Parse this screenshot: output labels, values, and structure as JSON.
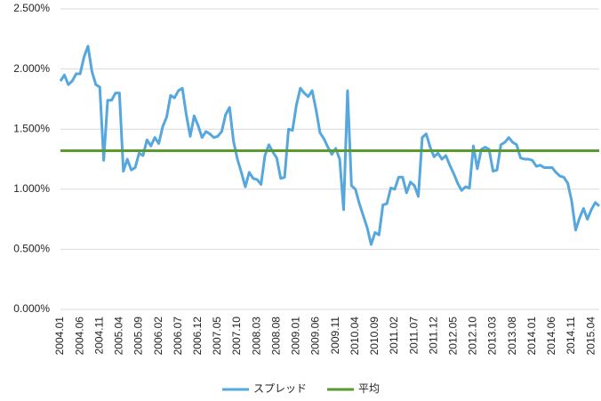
{
  "chart_data": {
    "type": "line",
    "categories": [
      "2004.01",
      null,
      null,
      null,
      null,
      "2004.06",
      null,
      null,
      null,
      null,
      "2004.11",
      null,
      null,
      null,
      null,
      "2005.04",
      null,
      null,
      null,
      null,
      "2005.09",
      null,
      null,
      null,
      null,
      "2006.02",
      null,
      null,
      null,
      null,
      "2006.07",
      null,
      null,
      null,
      null,
      "2006.12",
      null,
      null,
      null,
      null,
      "2007.05",
      null,
      null,
      null,
      null,
      "2007.10",
      null,
      null,
      null,
      null,
      "2008.03",
      null,
      null,
      null,
      null,
      "2008.08",
      null,
      null,
      null,
      null,
      "2009.01",
      null,
      null,
      null,
      null,
      "2009.06",
      null,
      null,
      null,
      null,
      "2009.11",
      null,
      null,
      null,
      null,
      "2010.04",
      null,
      null,
      null,
      null,
      "2010.09",
      null,
      null,
      null,
      null,
      "2011.02",
      null,
      null,
      null,
      null,
      "2011.07",
      null,
      null,
      null,
      null,
      "2011.12",
      null,
      null,
      null,
      null,
      "2012.05",
      null,
      null,
      null,
      null,
      "2012.10",
      null,
      null,
      null,
      null,
      "2013.03",
      null,
      null,
      null,
      null,
      "2013.08",
      null,
      null,
      null,
      null,
      "2014.01",
      null,
      null,
      null,
      null,
      "2014.06",
      null,
      null,
      null,
      null,
      "2014.11",
      null,
      null,
      null,
      null,
      "2015.04",
      null,
      null
    ],
    "series": [
      {
        "name": "スプレッド",
        "color": "#55a7dd",
        "values": [
          1.9,
          1.95,
          1.87,
          1.9,
          1.96,
          1.96,
          2.1,
          2.19,
          1.98,
          1.87,
          1.85,
          1.24,
          1.74,
          1.74,
          1.8,
          1.8,
          1.15,
          1.25,
          1.16,
          1.18,
          1.3,
          1.28,
          1.41,
          1.36,
          1.43,
          1.38,
          1.52,
          1.6,
          1.78,
          1.76,
          1.82,
          1.84,
          1.62,
          1.44,
          1.61,
          1.53,
          1.43,
          1.48,
          1.46,
          1.43,
          1.44,
          1.48,
          1.62,
          1.68,
          1.4,
          1.25,
          1.14,
          1.02,
          1.14,
          1.09,
          1.08,
          1.04,
          1.28,
          1.37,
          1.31,
          1.26,
          1.09,
          1.1,
          1.5,
          1.49,
          1.7,
          1.84,
          1.8,
          1.77,
          1.82,
          1.66,
          1.47,
          1.42,
          1.35,
          1.29,
          1.34,
          1.25,
          0.83,
          1.82,
          1.03,
          1.0,
          0.88,
          0.78,
          0.68,
          0.54,
          0.64,
          0.62,
          0.87,
          0.88,
          1.01,
          1.0,
          1.1,
          1.1,
          0.97,
          1.06,
          1.03,
          0.94,
          1.43,
          1.46,
          1.35,
          1.27,
          1.3,
          1.25,
          1.28,
          1.2,
          1.13,
          1.05,
          0.99,
          1.02,
          1.01,
          1.36,
          1.17,
          1.33,
          1.35,
          1.33,
          1.15,
          1.16,
          1.37,
          1.39,
          1.43,
          1.39,
          1.37,
          1.26,
          1.25,
          1.25,
          1.24,
          1.19,
          1.2,
          1.18,
          1.18,
          1.18,
          1.14,
          1.11,
          1.1,
          1.05,
          0.9,
          0.66,
          0.76,
          0.84,
          0.75,
          0.83,
          0.89,
          0.86
        ]
      },
      {
        "name": "平均",
        "color": "#5a9a2e",
        "values": [
          1.32,
          1.32,
          1.32,
          1.32,
          1.32,
          1.32,
          1.32,
          1.32,
          1.32,
          1.32,
          1.32,
          1.32,
          1.32,
          1.32,
          1.32,
          1.32,
          1.32,
          1.32,
          1.32,
          1.32,
          1.32,
          1.32,
          1.32,
          1.32,
          1.32,
          1.32,
          1.32,
          1.32,
          1.32,
          1.32,
          1.32,
          1.32,
          1.32,
          1.32,
          1.32,
          1.32,
          1.32,
          1.32,
          1.32,
          1.32,
          1.32,
          1.32,
          1.32,
          1.32,
          1.32,
          1.32,
          1.32,
          1.32,
          1.32,
          1.32,
          1.32,
          1.32,
          1.32,
          1.32,
          1.32,
          1.32,
          1.32,
          1.32,
          1.32,
          1.32,
          1.32,
          1.32,
          1.32,
          1.32,
          1.32,
          1.32,
          1.32,
          1.32,
          1.32,
          1.32,
          1.32,
          1.32,
          1.32,
          1.32,
          1.32,
          1.32,
          1.32,
          1.32,
          1.32,
          1.32,
          1.32,
          1.32,
          1.32,
          1.32,
          1.32,
          1.32,
          1.32,
          1.32,
          1.32,
          1.32,
          1.32,
          1.32,
          1.32,
          1.32,
          1.32,
          1.32,
          1.32,
          1.32,
          1.32,
          1.32,
          1.32,
          1.32,
          1.32,
          1.32,
          1.32,
          1.32,
          1.32,
          1.32,
          1.32,
          1.32,
          1.32,
          1.32,
          1.32,
          1.32,
          1.32,
          1.32,
          1.32,
          1.32,
          1.32,
          1.32,
          1.32,
          1.32,
          1.32,
          1.32,
          1.32,
          1.32,
          1.32,
          1.32,
          1.32,
          1.32,
          1.32,
          1.32,
          1.32,
          1.32,
          1.32,
          1.32,
          1.32,
          1.32
        ]
      }
    ],
    "ylim": [
      0,
      2.5
    ],
    "yticks": [
      {
        "value": 0,
        "label": "0.000%"
      },
      {
        "value": 0.5,
        "label": "0.500%"
      },
      {
        "value": 1,
        "label": "1.000%"
      },
      {
        "value": 1.5,
        "label": "1.500%"
      },
      {
        "value": 2,
        "label": "2.000%"
      },
      {
        "value": 2.5,
        "label": "2.500%"
      }
    ],
    "grid": true,
    "legend": "bottom"
  }
}
